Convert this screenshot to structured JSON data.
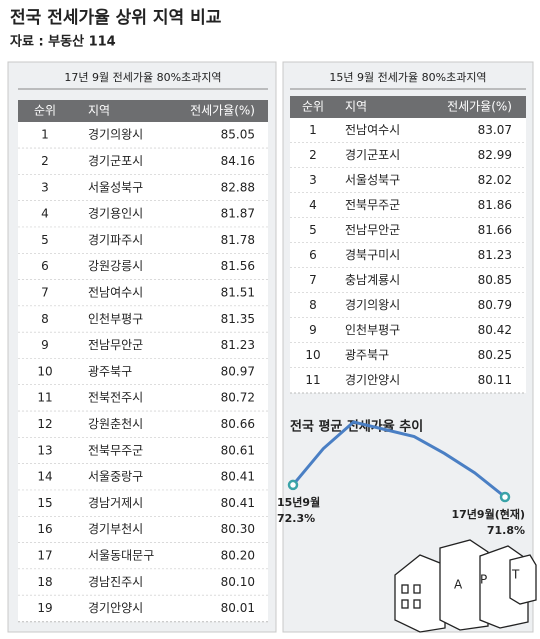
{
  "header": {
    "title": "전국 전세가율 상위 지역 비교",
    "source": "자료 : 부동산 114"
  },
  "tables": [
    {
      "caption": "17년 9월 전세가율 80%초과지역",
      "columns": [
        "순위",
        "지역",
        "전세가율(%)"
      ],
      "rows": [
        [
          "1",
          "경기의왕시",
          "85.05"
        ],
        [
          "2",
          "경기군포시",
          "84.16"
        ],
        [
          "3",
          "서울성북구",
          "82.88"
        ],
        [
          "4",
          "경기용인시",
          "81.87"
        ],
        [
          "5",
          "경기파주시",
          "81.78"
        ],
        [
          "6",
          "강원강릉시",
          "81.56"
        ],
        [
          "7",
          "전남여수시",
          "81.51"
        ],
        [
          "8",
          "인천부평구",
          "81.35"
        ],
        [
          "9",
          "전남무안군",
          "81.23"
        ],
        [
          "10",
          "광주북구",
          "80.97"
        ],
        [
          "11",
          "전북전주시",
          "80.72"
        ],
        [
          "12",
          "강원춘천시",
          "80.66"
        ],
        [
          "13",
          "전북무주군",
          "80.61"
        ],
        [
          "14",
          "서울중랑구",
          "80.41"
        ],
        [
          "15",
          "경남거제시",
          "80.41"
        ],
        [
          "16",
          "경기부천시",
          "80.30"
        ],
        [
          "17",
          "서울동대문구",
          "80.20"
        ],
        [
          "18",
          "경남진주시",
          "80.10"
        ],
        [
          "19",
          "경기안양시",
          "80.01"
        ]
      ]
    },
    {
      "caption": "15년 9월 전세가율 80%초과지역",
      "columns": [
        "순위",
        "지역",
        "전세가율(%)"
      ],
      "rows": [
        [
          "1",
          "전남여수시",
          "83.07"
        ],
        [
          "2",
          "경기군포시",
          "82.99"
        ],
        [
          "3",
          "서울성북구",
          "82.02"
        ],
        [
          "4",
          "전북무주군",
          "81.86"
        ],
        [
          "5",
          "전남무안군",
          "81.66"
        ],
        [
          "6",
          "경북구미시",
          "81.23"
        ],
        [
          "7",
          "충남계룡시",
          "80.85"
        ],
        [
          "8",
          "경기의왕시",
          "80.79"
        ],
        [
          "9",
          "인천부평구",
          "80.42"
        ],
        [
          "10",
          "광주북구",
          "80.25"
        ],
        [
          "11",
          "경기안양시",
          "80.11"
        ]
      ]
    }
  ],
  "chart_data": {
    "type": "line",
    "title": "전국 평균 전세가율 추이",
    "x": [
      "15년9월",
      null,
      null,
      null,
      null,
      null,
      null,
      "17년9월(현재)"
    ],
    "values": [
      72.3,
      73.8,
      74.9,
      74.6,
      74.3,
      73.6,
      72.8,
      71.8
    ],
    "value_labels": [
      "72.3%",
      null,
      null,
      null,
      null,
      null,
      null,
      "71.8%"
    ],
    "color": "#4a7fc4",
    "marker_color": "#3aa3a8"
  }
}
